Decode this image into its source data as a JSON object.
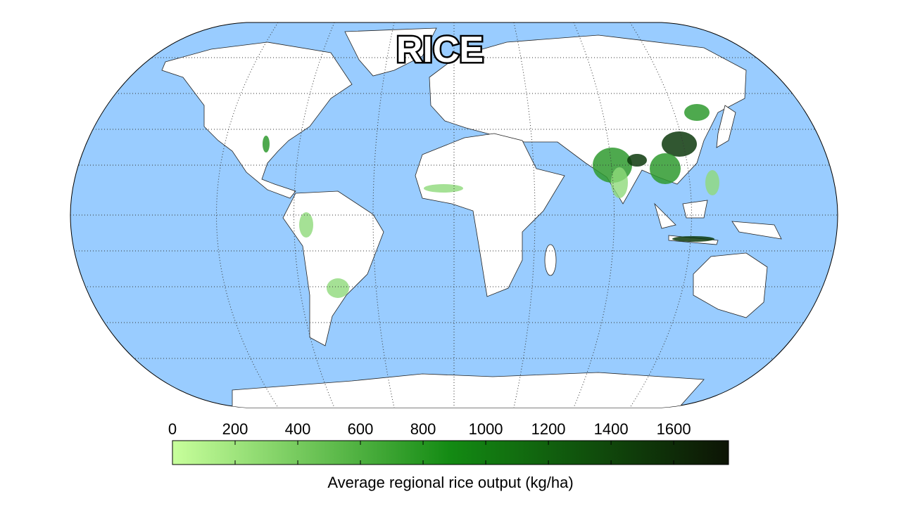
{
  "title": "RICE",
  "colorbar": {
    "label": "Average regional rice output (kg/ha)",
    "ticks": [
      0,
      200,
      400,
      600,
      800,
      1000,
      1200,
      1400,
      1600
    ],
    "range": [
      0,
      1775
    ],
    "colors": [
      "#c8ff9c",
      "#138a13",
      "#0d1405"
    ]
  }
}
